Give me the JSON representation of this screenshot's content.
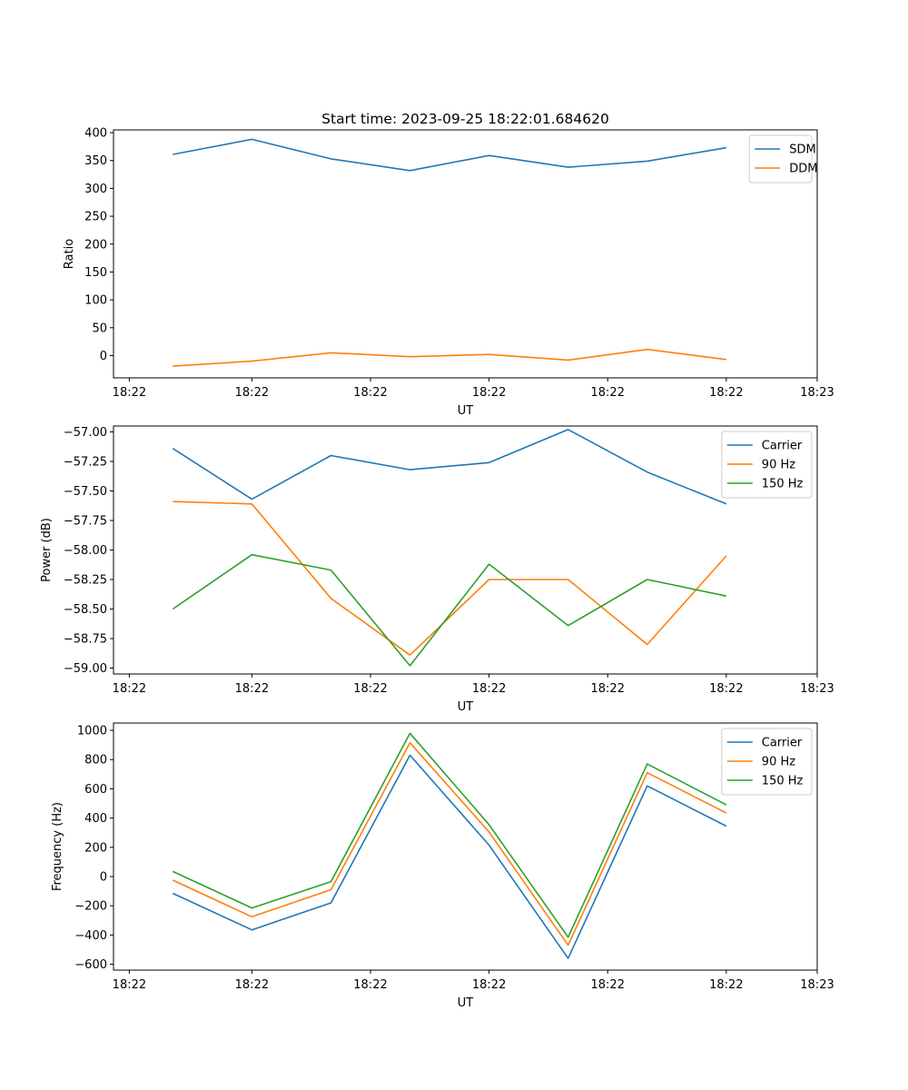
{
  "figure": {
    "title": "Start time: 2023-09-25 18:22:01.684620"
  },
  "colors": {
    "blue": "#1f77b4",
    "orange": "#ff7f0e",
    "green": "#2ca02c"
  },
  "chart_data": [
    {
      "type": "line",
      "title": "Start time: 2023-09-25 18:22:01.684620",
      "xlabel": "UT",
      "ylabel": "Ratio",
      "x": [
        1,
        2,
        3,
        4,
        5,
        6,
        7,
        8
      ],
      "xlim": [
        0.25,
        9.15
      ],
      "xticks": [
        0.45,
        2,
        3.5,
        5,
        6.5,
        8,
        9.15
      ],
      "xtick_labels": [
        "18:22",
        "18:22",
        "18:22",
        "18:22",
        "18:22",
        "18:22",
        "18:23"
      ],
      "ylim": [
        -40,
        405
      ],
      "yticks": [
        0,
        50,
        100,
        150,
        200,
        250,
        300,
        350,
        400
      ],
      "ytick_labels": [
        "0",
        "50",
        "100",
        "150",
        "200",
        "250",
        "300",
        "350",
        "400"
      ],
      "legend": "top-right",
      "series": [
        {
          "name": "SDM",
          "color": "#1f77b4",
          "values": [
            361,
            388,
            353,
            332,
            359,
            338,
            349,
            373
          ]
        },
        {
          "name": "DDM",
          "color": "#ff7f0e",
          "values": [
            -19,
            -10,
            5,
            -2,
            2,
            -8,
            11,
            -7
          ]
        }
      ]
    },
    {
      "type": "line",
      "title": "",
      "xlabel": "UT",
      "ylabel": "Power (dB)",
      "x": [
        1,
        2,
        3,
        4,
        5,
        6,
        7,
        8
      ],
      "xlim": [
        0.25,
        9.15
      ],
      "xticks": [
        0.45,
        2,
        3.5,
        5,
        6.5,
        8,
        9.15
      ],
      "xtick_labels": [
        "18:22",
        "18:22",
        "18:22",
        "18:22",
        "18:22",
        "18:22",
        "18:23"
      ],
      "ylim": [
        -59.05,
        -56.95
      ],
      "yticks": [
        -59.0,
        -58.75,
        -58.5,
        -58.25,
        -58.0,
        -57.75,
        -57.5,
        -57.25,
        -57.0
      ],
      "ytick_labels": [
        "−59.00",
        "−58.75",
        "−58.50",
        "−58.25",
        "−58.00",
        "−57.75",
        "−57.50",
        "−57.25",
        "−57.00"
      ],
      "legend": "top-right",
      "series": [
        {
          "name": "Carrier",
          "color": "#1f77b4",
          "values": [
            -57.14,
            -57.57,
            -57.2,
            -57.32,
            -57.26,
            -56.98,
            -57.34,
            -57.61
          ]
        },
        {
          "name": "90 Hz",
          "color": "#ff7f0e",
          "values": [
            -57.59,
            -57.61,
            -58.41,
            -58.89,
            -58.25,
            -58.25,
            -58.8,
            -58.05
          ]
        },
        {
          "name": "150 Hz",
          "color": "#2ca02c",
          "values": [
            -58.5,
            -58.04,
            -58.17,
            -58.98,
            -58.12,
            -58.64,
            -58.25,
            -58.39
          ]
        }
      ]
    },
    {
      "type": "line",
      "title": "",
      "xlabel": "UT",
      "ylabel": "Frequency (Hz)",
      "x": [
        1,
        2,
        3,
        4,
        5,
        6,
        7,
        8
      ],
      "xlim": [
        0.25,
        9.15
      ],
      "xticks": [
        0.45,
        2,
        3.5,
        5,
        6.5,
        8,
        9.15
      ],
      "xtick_labels": [
        "18:22",
        "18:22",
        "18:22",
        "18:22",
        "18:22",
        "18:22",
        "18:23"
      ],
      "ylim": [
        -640,
        1050
      ],
      "yticks": [
        -600,
        -400,
        -200,
        0,
        200,
        400,
        600,
        800,
        1000
      ],
      "ytick_labels": [
        "−600",
        "−400",
        "−200",
        "0",
        "200",
        "400",
        "600",
        "800",
        "1000"
      ],
      "legend": "top-right",
      "series": [
        {
          "name": "Carrier",
          "color": "#1f77b4",
          "values": [
            -115,
            -365,
            -180,
            830,
            215,
            -560,
            620,
            345
          ]
        },
        {
          "name": "90 Hz",
          "color": "#ff7f0e",
          "values": [
            -25,
            -275,
            -90,
            915,
            305,
            -470,
            710,
            435
          ]
        },
        {
          "name": "150 Hz",
          "color": "#2ca02c",
          "values": [
            35,
            -215,
            -35,
            980,
            355,
            -415,
            770,
            490
          ]
        }
      ]
    }
  ]
}
